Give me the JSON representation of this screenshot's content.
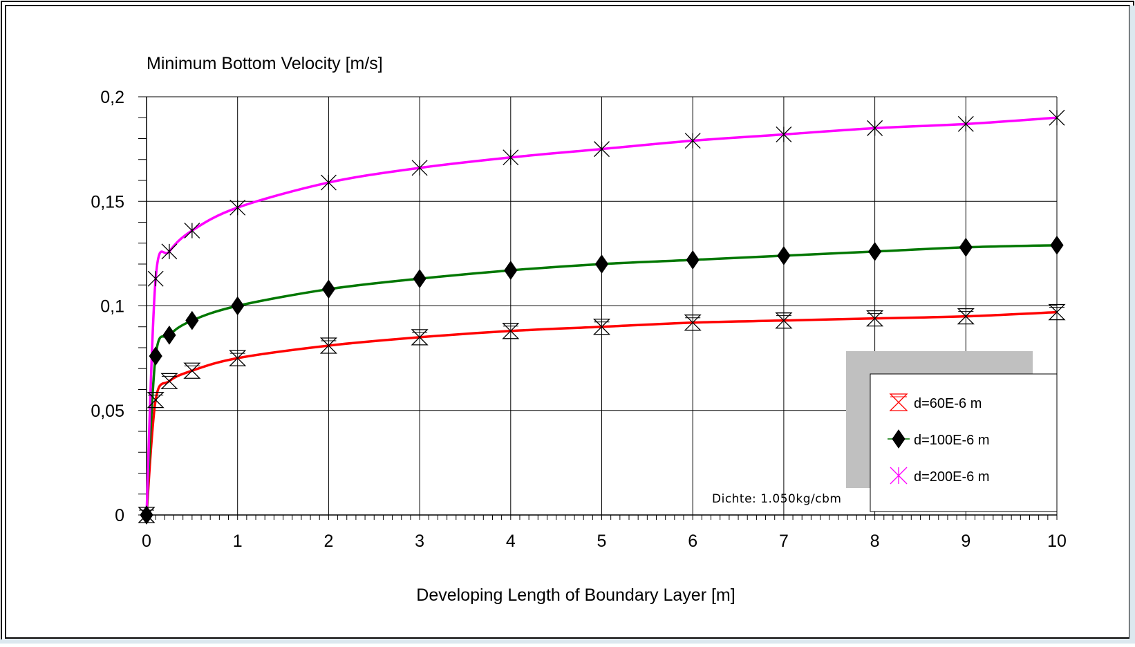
{
  "chart_data": {
    "type": "line",
    "ytitle": "Minimum Bottom Velocity [m/s]",
    "xlabel": "Developing Length of Boundary Layer [m]",
    "xlim": [
      0,
      10
    ],
    "ylim": [
      0,
      0.2
    ],
    "xticks": [
      "0",
      "1",
      "2",
      "3",
      "4",
      "5",
      "6",
      "7",
      "8",
      "9",
      "10"
    ],
    "yticks": [
      "0",
      "0,05",
      "0,1",
      "0,15",
      "0,2"
    ],
    "grid": true,
    "legend_position": "bottom-right",
    "annotation": "Dichte:  1.050kg/cbm",
    "x": [
      0,
      0.1,
      0.25,
      0.5,
      1,
      2,
      3,
      4,
      5,
      6,
      7,
      8,
      9,
      10
    ],
    "series": [
      {
        "name": "d=60E-6 m",
        "color": "#ff0000",
        "marker": "hourglass",
        "values": [
          0,
          0.055,
          0.064,
          0.069,
          0.075,
          0.081,
          0.085,
          0.088,
          0.09,
          0.092,
          0.093,
          0.094,
          0.095,
          0.097
        ]
      },
      {
        "name": "d=100E-6 m",
        "color": "#007700",
        "marker": "diamond",
        "values": [
          0,
          0.076,
          0.086,
          0.093,
          0.1,
          0.108,
          0.113,
          0.117,
          0.12,
          0.122,
          0.124,
          0.126,
          0.128,
          0.129
        ]
      },
      {
        "name": "d=200E-6 m",
        "color": "#ff00ff",
        "marker": "cross",
        "values": [
          0,
          0.113,
          0.126,
          0.136,
          0.147,
          0.159,
          0.166,
          0.171,
          0.175,
          0.179,
          0.182,
          0.185,
          0.187,
          0.19
        ]
      }
    ]
  }
}
